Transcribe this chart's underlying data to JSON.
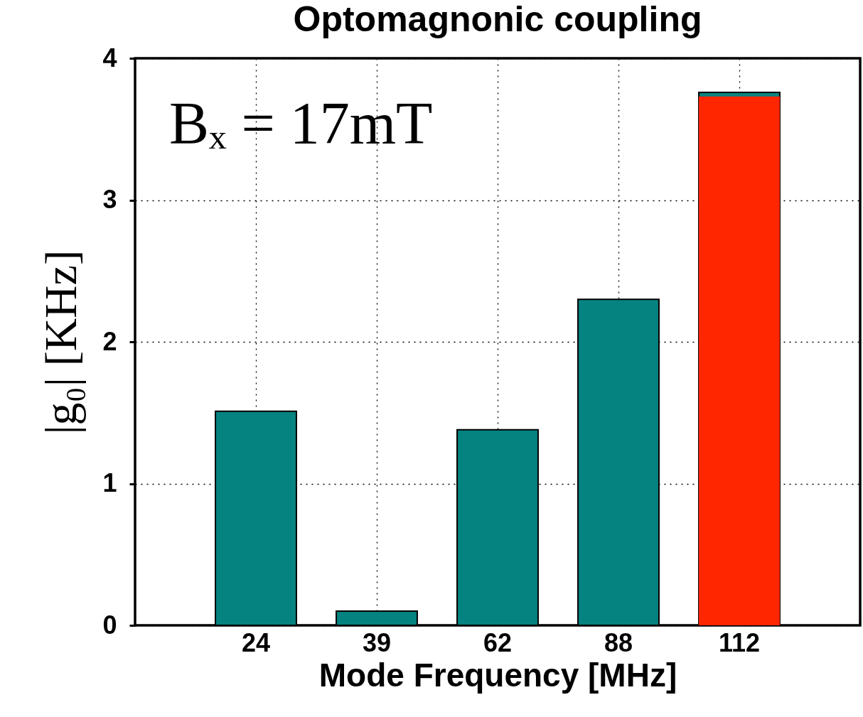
{
  "chart_data": {
    "type": "bar",
    "title": "Optomagnonic coupling",
    "xlabel": "Mode Frequency [MHz]",
    "ylabel": "|g₀| [KHz]",
    "categories": [
      "24",
      "39",
      "62",
      "88",
      "112"
    ],
    "series": [
      {
        "color": "#058380",
        "values": [
          1.51,
          0.1,
          1.38,
          2.3,
          3.76
        ]
      },
      {
        "color": "#ff2600",
        "values": [
          null,
          null,
          null,
          null,
          3.73
        ]
      }
    ],
    "ylim": [
      0,
      4
    ],
    "yticks": [
      0,
      1,
      2,
      3,
      4
    ],
    "grid": true,
    "annotations": [
      "Bₓ = 17mT"
    ]
  }
}
